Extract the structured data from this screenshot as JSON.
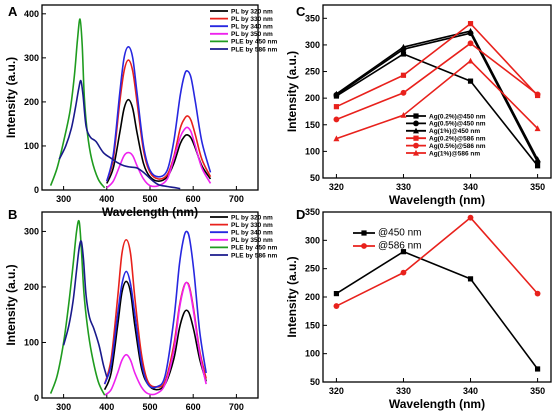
{
  "figure": {
    "panels": [
      "A",
      "B",
      "C",
      "D"
    ]
  },
  "chart_data": [
    {
      "id": "A",
      "type": "line",
      "xlabel": "Wavelength (nm)",
      "ylabel": "Intensity (a.u.)",
      "xlim": [
        250,
        750
      ],
      "ylim": [
        0,
        420
      ],
      "xticks": [
        300,
        400,
        500,
        600,
        700
      ],
      "yticks": [
        0,
        100,
        200,
        300,
        400
      ],
      "legend_position": "top-right",
      "series": [
        {
          "name": "PL by 320 nm",
          "color": "#000000",
          "x": [
            400,
            415,
            430,
            440,
            450,
            460,
            470,
            485,
            500,
            520,
            540,
            555,
            570,
            580,
            587,
            595,
            605,
            620,
            640
          ],
          "y": [
            15,
            50,
            130,
            185,
            205,
            185,
            130,
            60,
            30,
            20,
            30,
            60,
            105,
            122,
            125,
            118,
            95,
            55,
            25
          ]
        },
        {
          "name": "PL by 330 nm",
          "color": "#e8211c",
          "x": [
            400,
            415,
            430,
            440,
            450,
            460,
            470,
            485,
            500,
            520,
            540,
            555,
            570,
            580,
            587,
            595,
            605,
            620,
            640
          ],
          "y": [
            20,
            70,
            200,
            270,
            295,
            270,
            200,
            90,
            40,
            25,
            35,
            75,
            140,
            162,
            168,
            158,
            125,
            70,
            30
          ]
        },
        {
          "name": "PL by 340 nm",
          "color": "#2727e0",
          "x": [
            400,
            415,
            430,
            440,
            450,
            460,
            470,
            485,
            500,
            520,
            540,
            555,
            570,
            580,
            587,
            595,
            605,
            620,
            640
          ],
          "y": [
            20,
            80,
            220,
            300,
            325,
            300,
            220,
            100,
            45,
            30,
            45,
            110,
            215,
            262,
            270,
            255,
            200,
            110,
            40
          ]
        },
        {
          "name": "PL by 350 nm",
          "color": "#ee22ee",
          "x": [
            400,
            415,
            430,
            440,
            450,
            460,
            470,
            485,
            500,
            520,
            540,
            555,
            570,
            580,
            587,
            595,
            605,
            620,
            640
          ],
          "y": [
            5,
            20,
            55,
            78,
            85,
            78,
            55,
            25,
            10,
            10,
            25,
            70,
            120,
            138,
            142,
            132,
            100,
            50,
            15
          ]
        },
        {
          "name": "PLE by 450 nm",
          "color": "#1f9c1f",
          "x": [
            270,
            285,
            300,
            315,
            325,
            332,
            338,
            343,
            348,
            355,
            365,
            380,
            395
          ],
          "y": [
            10,
            50,
            110,
            180,
            260,
            340,
            388,
            330,
            210,
            130,
            70,
            25,
            5
          ]
        },
        {
          "name": "PLE by 586 nm",
          "color": "#1a1a8c",
          "x": [
            290,
            305,
            318,
            328,
            335,
            340,
            345,
            352,
            362,
            375,
            392,
            410,
            425,
            440,
            455,
            470,
            485,
            505,
            520,
            540,
            560,
            570
          ],
          "y": [
            70,
            100,
            140,
            190,
            230,
            248,
            215,
            145,
            120,
            110,
            85,
            72,
            62,
            55,
            52,
            50,
            40,
            22,
            12,
            8,
            5,
            3
          ]
        }
      ]
    },
    {
      "id": "B",
      "type": "line",
      "xlabel": "Wavelength (nm)",
      "ylabel": "Intensity (a.u.)",
      "xlim": [
        250,
        750
      ],
      "ylim": [
        0,
        335
      ],
      "xticks": [
        300,
        400,
        500,
        600,
        700
      ],
      "yticks": [
        0,
        100,
        200,
        300
      ],
      "legend_position": "top-right",
      "series": [
        {
          "name": "PL by 320 nm",
          "color": "#000000",
          "x": [
            395,
            410,
            425,
            435,
            445,
            455,
            465,
            480,
            495,
            515,
            535,
            555,
            568,
            578,
            585,
            592,
            602,
            615,
            630
          ],
          "y": [
            15,
            45,
            130,
            190,
            210,
            190,
            130,
            55,
            25,
            15,
            25,
            70,
            125,
            152,
            158,
            150,
            120,
            70,
            30
          ]
        },
        {
          "name": "PL by 330 nm",
          "color": "#e8211c",
          "x": [
            395,
            410,
            425,
            435,
            445,
            455,
            465,
            480,
            495,
            515,
            535,
            555,
            568,
            578,
            585,
            592,
            602,
            615,
            630
          ],
          "y": [
            25,
            70,
            180,
            260,
            285,
            260,
            180,
            80,
            30,
            20,
            30,
            95,
            165,
            200,
            208,
            198,
            155,
            85,
            35
          ]
        },
        {
          "name": "PL by 340 nm",
          "color": "#2727e0",
          "x": [
            395,
            410,
            425,
            435,
            445,
            455,
            465,
            480,
            495,
            515,
            535,
            555,
            568,
            578,
            585,
            592,
            602,
            615,
            630
          ],
          "y": [
            25,
            60,
            150,
            205,
            228,
            205,
            150,
            65,
            25,
            20,
            40,
            140,
            240,
            288,
            300,
            285,
            225,
            120,
            45
          ]
        },
        {
          "name": "PL by 350 nm",
          "color": "#ee22ee",
          "x": [
            395,
            410,
            425,
            435,
            445,
            455,
            465,
            480,
            495,
            515,
            535,
            555,
            568,
            578,
            585,
            592,
            602,
            615,
            630
          ],
          "y": [
            5,
            15,
            45,
            68,
            78,
            68,
            45,
            20,
            8,
            8,
            25,
            85,
            160,
            198,
            208,
            195,
            150,
            80,
            25
          ]
        },
        {
          "name": "PLE by 450 nm",
          "color": "#1f9c1f",
          "x": [
            270,
            285,
            300,
            312,
            322,
            330,
            336,
            341,
            347,
            355,
            365,
            380,
            395
          ],
          "y": [
            8,
            40,
            100,
            170,
            240,
            300,
            318,
            270,
            190,
            130,
            80,
            30,
            5
          ]
        },
        {
          "name": "PLE by 586 nm",
          "color": "#1a1a8c",
          "x": [
            300,
            312,
            322,
            330,
            336,
            341,
            346,
            352,
            360,
            370,
            382,
            392,
            400
          ],
          "y": [
            95,
            130,
            175,
            230,
            270,
            282,
            250,
            185,
            145,
            125,
            95,
            60,
            38
          ]
        }
      ]
    },
    {
      "id": "C",
      "type": "line",
      "xlabel": "Wavelength (nm)",
      "ylabel": "Intensity (a.u.)",
      "xlim": [
        318,
        352
      ],
      "ylim": [
        50,
        375
      ],
      "xticks": [
        320,
        330,
        340,
        350
      ],
      "yticks": [
        50,
        100,
        150,
        200,
        250,
        300,
        350
      ],
      "legend_position": "bottom-center",
      "categories": [
        320,
        330,
        340,
        350
      ],
      "series": [
        {
          "name": "Ag(0.2%)@450 nm",
          "color": "#000000",
          "marker": "square",
          "values": [
            204,
            283,
            232,
            73
          ]
        },
        {
          "name": "Ag(0.5%)@450 nm",
          "color": "#000000",
          "marker": "circle",
          "values": [
            206,
            292,
            322,
            80
          ]
        },
        {
          "name": "Ag(1%)@450 nm",
          "color": "#000000",
          "marker": "triangle",
          "values": [
            208,
            296,
            326,
            85
          ]
        },
        {
          "name": "Ag(0.2%)@586 nm",
          "color": "#e8211c",
          "marker": "square",
          "values": [
            184,
            243,
            340,
            205
          ]
        },
        {
          "name": "Ag(0.5%)@586 nm",
          "color": "#e8211c",
          "marker": "circle",
          "values": [
            160,
            210,
            303,
            207
          ]
        },
        {
          "name": "Ag(1%)@586 nm",
          "color": "#e8211c",
          "marker": "triangle",
          "values": [
            124,
            168,
            270,
            143
          ]
        }
      ]
    },
    {
      "id": "D",
      "type": "line",
      "xlabel": "Wavelength (nm)",
      "ylabel": "Intensity (a.u.)",
      "xlim": [
        318,
        352
      ],
      "ylim": [
        50,
        350
      ],
      "xticks": [
        320,
        330,
        340,
        350
      ],
      "yticks": [
        50,
        100,
        150,
        200,
        250,
        300,
        350
      ],
      "legend_position": "top-left",
      "categories": [
        320,
        330,
        340,
        350
      ],
      "series": [
        {
          "name": "@450 nm",
          "color": "#000000",
          "marker": "square",
          "values": [
            206,
            280,
            232,
            73
          ]
        },
        {
          "name": "@586 nm",
          "color": "#e8211c",
          "marker": "circle",
          "values": [
            184,
            243,
            340,
            206
          ]
        }
      ]
    }
  ]
}
